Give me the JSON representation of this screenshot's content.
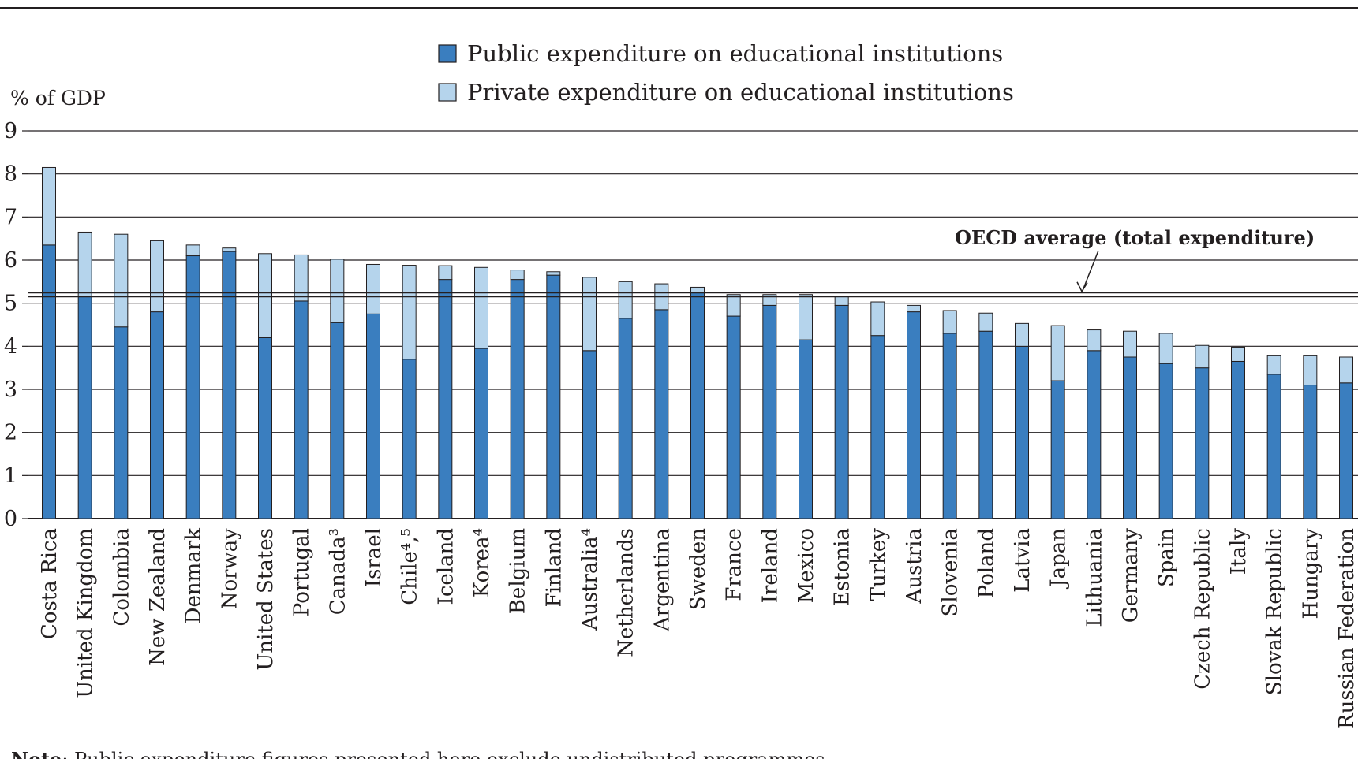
{
  "chart_data": {
    "type": "bar",
    "stacked": true,
    "ylabel": "% of GDP",
    "ylim": [
      0,
      9
    ],
    "yticks": [
      0,
      1,
      2,
      3,
      4,
      5,
      6,
      7,
      8,
      9
    ],
    "grid": true,
    "legend_position": "top-center",
    "categories": [
      "Costa Rica",
      "United Kingdom",
      "Colombia",
      "New Zealand",
      "Denmark",
      "Norway",
      "United States",
      "Portugal",
      "Canada³",
      "Israel",
      "Chile⁴,⁵",
      "Iceland",
      "Korea⁴",
      "Belgium",
      "Finland",
      "Australia⁴",
      "Netherlands",
      "Argentina",
      "Sweden",
      "France",
      "Ireland",
      "Mexico",
      "Estonia",
      "Turkey",
      "Austria",
      "Slovenia",
      "Poland",
      "Latvia",
      "Japan",
      "Lithuania",
      "Germany",
      "Spain",
      "Czech Republic",
      "Italy",
      "Slovak Republic",
      "Hungary",
      "Russian Federation"
    ],
    "series": [
      {
        "name": "Public expenditure on educational institutions",
        "color": "#3a7ebf",
        "values": [
          6.35,
          5.15,
          4.45,
          4.8,
          6.1,
          6.2,
          4.2,
          5.05,
          4.55,
          4.75,
          3.7,
          5.55,
          3.95,
          5.55,
          5.65,
          3.9,
          4.65,
          4.85,
          5.25,
          4.7,
          4.95,
          4.15,
          4.95,
          4.25,
          4.8,
          4.3,
          4.35,
          4.0,
          3.2,
          3.9,
          3.75,
          3.6,
          3.5,
          3.65,
          3.35,
          3.1,
          3.15
        ]
      },
      {
        "name": "Private expenditure on educational institutions",
        "color": "#b5d4ec",
        "values": [
          1.8,
          1.5,
          2.15,
          1.65,
          0.25,
          0.08,
          1.95,
          1.07,
          1.47,
          1.15,
          2.18,
          0.32,
          1.88,
          0.22,
          0.08,
          1.7,
          0.85,
          0.6,
          0.12,
          0.5,
          0.25,
          1.05,
          0.2,
          0.78,
          0.15,
          0.53,
          0.42,
          0.53,
          1.28,
          0.48,
          0.6,
          0.7,
          0.52,
          0.33,
          0.43,
          0.68,
          0.6
        ]
      }
    ],
    "oecd_average": 5.2,
    "annotations": [
      "OECD average (total expenditure)"
    ]
  },
  "note": {
    "label": "Note",
    "text": ": Public expenditure figures presented here exclude undistributed programmes."
  }
}
